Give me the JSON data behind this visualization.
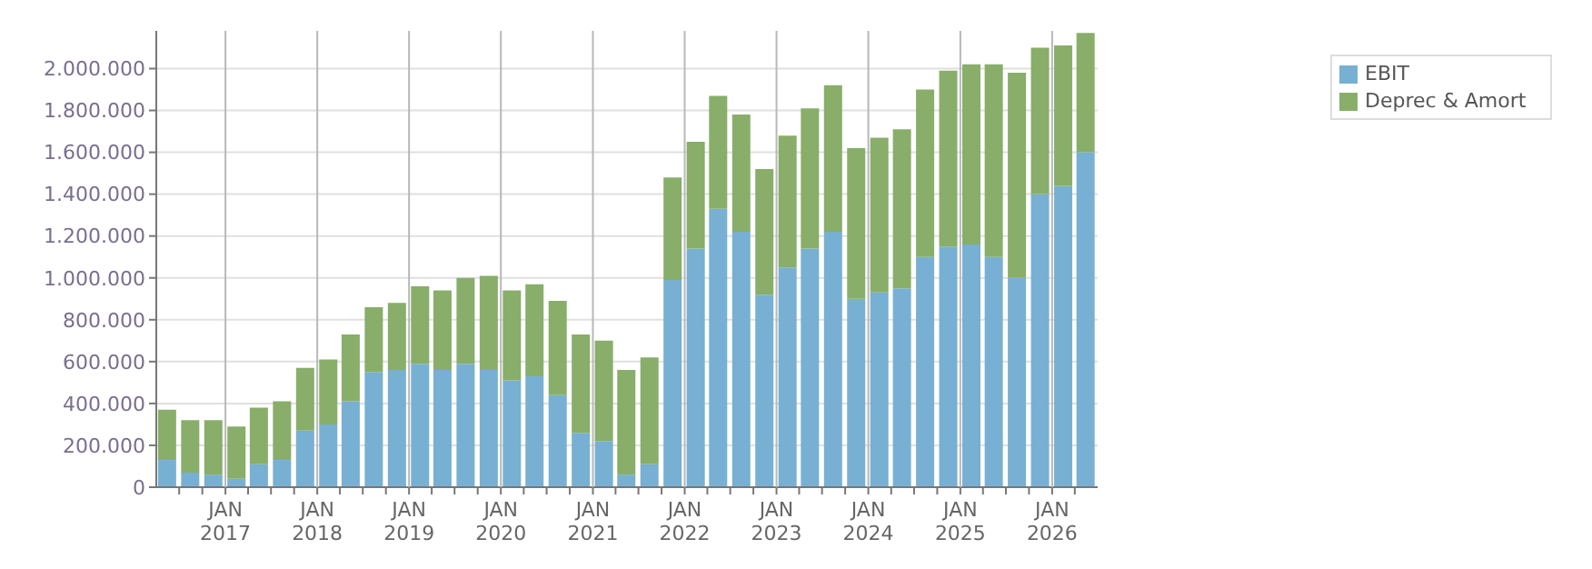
{
  "chart_data": {
    "type": "bar",
    "stacked": true,
    "x": [
      "2016-05-15",
      "2016-08-15",
      "2016-11-15",
      "2017-02-15",
      "2017-05-15",
      "2017-08-15",
      "2017-11-15",
      "2018-02-15",
      "2018-05-15",
      "2018-08-15",
      "2018-11-15",
      "2019-02-15",
      "2019-05-15",
      "2019-08-15",
      "2019-11-15",
      "2020-02-15",
      "2020-05-15",
      "2020-08-15",
      "2020-11-15",
      "2021-02-15",
      "2021-05-15",
      "2021-08-15",
      "2021-11-15",
      "2022-02-15",
      "2022-05-15",
      "2022-08-15",
      "2022-11-15",
      "2023-02-15",
      "2023-05-15",
      "2023-08-15",
      "2023-11-15",
      "2024-02-15",
      "2024-05-15",
      "2024-08-15",
      "2024-11-15",
      "2025-02-15",
      "2025-05-15",
      "2025-08-15",
      "2025-11-15",
      "2026-02-15",
      "2026-05-15"
    ],
    "series": [
      {
        "name": "EBIT",
        "color": "#77b0d2",
        "values": [
          130000,
          70000,
          60000,
          40000,
          110000,
          130000,
          270000,
          300000,
          410000,
          550000,
          560000,
          590000,
          560000,
          590000,
          560000,
          510000,
          530000,
          440000,
          260000,
          220000,
          60000,
          110000,
          990000,
          1140000,
          1330000,
          1220000,
          920000,
          1050000,
          1140000,
          1220000,
          900000,
          930000,
          950000,
          1100000,
          1150000,
          1160000,
          1100000,
          1000000,
          1400000,
          1440000,
          1600000
        ]
      },
      {
        "name": "Deprec & Amort",
        "color": "#88ae6a",
        "values": [
          240000,
          250000,
          260000,
          250000,
          270000,
          280000,
          300000,
          310000,
          320000,
          310000,
          320000,
          370000,
          380000,
          410000,
          450000,
          430000,
          440000,
          450000,
          470000,
          480000,
          500000,
          510000,
          490000,
          510000,
          540000,
          560000,
          600000,
          630000,
          670000,
          700000,
          720000,
          740000,
          760000,
          800000,
          840000,
          860000,
          920000,
          980000,
          700000,
          670000,
          570000
        ]
      }
    ],
    "xlim": [
      "2016-04-01",
      "2026-07-01"
    ],
    "xticks": [
      {
        "value": "2016-07-01",
        "label": null
      },
      {
        "value": "2016-10-01",
        "label": null
      },
      {
        "value": "2017-01-01",
        "label": "JAN 2017"
      },
      {
        "value": "2017-04-01",
        "label": null
      },
      {
        "value": "2017-07-01",
        "label": null
      },
      {
        "value": "2017-10-01",
        "label": null
      },
      {
        "value": "2018-01-01",
        "label": "JAN 2018"
      },
      {
        "value": "2018-04-01",
        "label": null
      },
      {
        "value": "2018-07-01",
        "label": null
      },
      {
        "value": "2018-10-01",
        "label": null
      },
      {
        "value": "2019-01-01",
        "label": "JAN 2019"
      },
      {
        "value": "2019-04-01",
        "label": null
      },
      {
        "value": "2019-07-01",
        "label": null
      },
      {
        "value": "2019-10-01",
        "label": null
      },
      {
        "value": "2020-01-01",
        "label": "JAN 2020"
      },
      {
        "value": "2020-04-01",
        "label": null
      },
      {
        "value": "2020-07-01",
        "label": null
      },
      {
        "value": "2020-10-01",
        "label": null
      },
      {
        "value": "2021-01-01",
        "label": "JAN 2021"
      },
      {
        "value": "2021-04-01",
        "label": null
      },
      {
        "value": "2021-07-01",
        "label": null
      },
      {
        "value": "2021-10-01",
        "label": null
      },
      {
        "value": "2022-01-01",
        "label": "JAN 2022"
      },
      {
        "value": "2022-04-01",
        "label": null
      },
      {
        "value": "2022-07-01",
        "label": null
      },
      {
        "value": "2022-10-01",
        "label": null
      },
      {
        "value": "2023-01-01",
        "label": "JAN 2023"
      },
      {
        "value": "2023-04-01",
        "label": null
      },
      {
        "value": "2023-07-01",
        "label": null
      },
      {
        "value": "2023-10-01",
        "label": null
      },
      {
        "value": "2024-01-01",
        "label": "JAN 2024"
      },
      {
        "value": "2024-04-01",
        "label": null
      },
      {
        "value": "2024-07-01",
        "label": null
      },
      {
        "value": "2024-10-01",
        "label": null
      },
      {
        "value": "2025-01-01",
        "label": "JAN 2025"
      },
      {
        "value": "2025-04-01",
        "label": null
      },
      {
        "value": "2025-07-01",
        "label": null
      },
      {
        "value": "2025-10-01",
        "label": null
      },
      {
        "value": "2026-01-01",
        "label": "JAN 2026"
      },
      {
        "value": "2026-04-01",
        "label": null
      }
    ],
    "ylim": [
      0,
      2180000
    ],
    "yticks": [
      0,
      {
        "value": 200000,
        "label": "200.000"
      },
      {
        "value": 400000,
        "label": "400.000"
      },
      {
        "value": 600000,
        "label": "600.000"
      },
      {
        "value": 800000,
        "label": "800.000"
      },
      {
        "value": 1000000,
        "label": "1.000.000"
      },
      {
        "value": 1200000,
        "label": "1.200.000"
      },
      {
        "value": 1400000,
        "label": "1.400.000"
      },
      {
        "value": 1600000,
        "label": "1.600.000"
      },
      {
        "value": 1800000,
        "label": "1.800.000"
      },
      {
        "value": 2000000,
        "label": "2.000.000"
      }
    ],
    "grid": true,
    "legend": "top right"
  }
}
